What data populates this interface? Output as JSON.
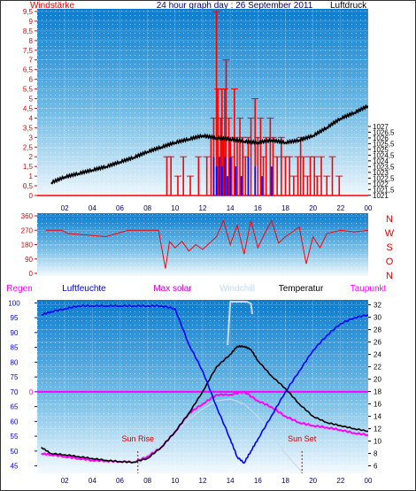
{
  "header": {
    "left_label": "Windstärke",
    "title": "24 hour graph day : 26 September 2011",
    "right_label": "Luftdruck"
  },
  "colors": {
    "wind": "#ff0000",
    "gust_blue": "#0000ff",
    "pressure": "#000000",
    "humidity": "#0000ff",
    "solar": "#c000c0",
    "windchill": "#c8d8f0",
    "temperature": "#000000",
    "dewpoint": "#ff00ff",
    "rain": "#ff00ff",
    "text_red": "#e00000",
    "text_blue": "#0000cc",
    "text_dark": "#000066"
  },
  "chart_data": [
    {
      "id": "wind_pressure",
      "type": "bar",
      "x_ticks": [
        "02",
        "04",
        "06",
        "08",
        "10",
        "12",
        "14",
        "16",
        "18",
        "20",
        "22",
        "00"
      ],
      "left_axis": {
        "label": "Windstärke",
        "range": [
          0,
          9.5
        ],
        "ticks": [
          "0",
          "0,5",
          "1",
          "1,5",
          "2",
          "2,5",
          "3",
          "3,5",
          "4",
          "4,5",
          "5",
          "5,5",
          "6",
          "6,5",
          "7",
          "7,5",
          "8",
          "8,5",
          "9",
          "9,5"
        ]
      },
      "right_axis": {
        "label": "Luftdruck",
        "range": [
          1020.75,
          1037.25
        ],
        "ticks": [
          "1021",
          "1021,5",
          "1022",
          "1022,5",
          "1023",
          "1023,5",
          "1024",
          "1024,5",
          "1025",
          "1025,5",
          "1026",
          "1026,5",
          "1027"
        ]
      },
      "series": [
        {
          "name": "Windstärke",
          "kind": "bars",
          "x": [
            9.4,
            9.7,
            10.2,
            10.6,
            11.1,
            11.7,
            12.3,
            12.6,
            12.8,
            13.0,
            13.1,
            13.3,
            13.4,
            13.5,
            13.6,
            13.7,
            13.9,
            14.0,
            14.1,
            14.3,
            14.5,
            14.7,
            14.9,
            15.1,
            15.3,
            15.5,
            15.8,
            16.0,
            16.2,
            16.4,
            16.6,
            16.9,
            17.1,
            17.4,
            17.7,
            18.0,
            18.3,
            18.6,
            18.9,
            19.1,
            19.3,
            19.6,
            19.8,
            20.1,
            20.3,
            20.6,
            21.0,
            21.4,
            21.9
          ],
          "values": [
            2,
            2,
            1,
            2,
            1,
            2,
            2,
            3,
            4,
            9.5,
            5.5,
            4,
            5.5,
            3,
            5.5,
            7,
            4,
            3,
            2,
            5.5,
            3,
            4,
            3,
            2,
            3,
            4,
            5,
            3,
            4,
            2,
            3,
            4,
            3,
            2,
            3,
            2,
            2,
            1,
            2,
            3,
            2,
            1,
            2,
            2,
            1,
            2,
            1,
            2,
            1
          ]
        },
        {
          "name": "Böen",
          "kind": "bars",
          "x": [
            12.8,
            13.0,
            13.2,
            13.4,
            13.6,
            13.8,
            14.0,
            14.4,
            14.8,
            15.3,
            15.8,
            16.3,
            17.0
          ],
          "values": [
            2,
            1.5,
            2,
            1.5,
            2,
            1,
            2,
            1.5,
            1,
            2,
            1.5,
            1,
            1.5
          ]
        },
        {
          "name": "Luftdruck",
          "kind": "line",
          "axis": "right",
          "x": [
            1,
            2,
            3,
            4,
            5,
            6,
            7,
            8,
            9,
            10,
            11,
            12,
            13,
            14,
            15,
            16,
            17,
            18,
            19,
            20,
            21,
            22,
            23,
            24
          ],
          "values": [
            1022.1,
            1022.6,
            1022.9,
            1023.2,
            1023.5,
            1023.9,
            1024.3,
            1024.8,
            1025.2,
            1025.6,
            1025.9,
            1026.2,
            1026.0,
            1025.9,
            1025.7,
            1025.6,
            1025.8,
            1025.6,
            1025.8,
            1026.2,
            1026.9,
            1027.7,
            1028.2,
            1028.8
          ]
        }
      ]
    },
    {
      "id": "wind_direction",
      "type": "line",
      "x_ticks": [],
      "left_axis": {
        "range": [
          0,
          360
        ],
        "ticks": [
          "0",
          "90",
          "180",
          "270",
          "360"
        ]
      },
      "right_labels": [
        "N",
        "W",
        "S",
        "O",
        "N"
      ],
      "series": [
        {
          "name": "Windrichtung",
          "x": [
            0.6,
            1.8,
            2.2,
            3.6,
            5.0,
            6.6,
            8.8,
            9.3,
            9.6,
            10.0,
            10.5,
            11.0,
            11.5,
            12.0,
            12.5,
            13.0,
            13.5,
            14.0,
            14.5,
            15.0,
            15.5,
            16.0,
            16.5,
            17.0,
            17.5,
            18.0,
            18.5,
            19.0,
            19.5,
            20.0,
            20.5,
            21.0,
            21.5,
            22.0,
            23.0,
            24.0
          ],
          "values": [
            270,
            270,
            250,
            240,
            230,
            270,
            270,
            30,
            200,
            160,
            200,
            140,
            180,
            150,
            190,
            230,
            330,
            180,
            300,
            120,
            330,
            160,
            250,
            330,
            190,
            230,
            260,
            290,
            60,
            230,
            160,
            250,
            260,
            270,
            260,
            270
          ]
        }
      ]
    },
    {
      "id": "temp_humidity",
      "type": "line",
      "x_ticks": [
        "02",
        "04",
        "06",
        "08",
        "10",
        "12",
        "14",
        "16",
        "18",
        "20",
        "22",
        "00"
      ],
      "legend": [
        "Regen",
        "Luftfeuchte",
        "Max solar",
        "Windchill",
        "Temperatur",
        "Taupunkt"
      ],
      "left_axis": {
        "label": "Luftfeuchte",
        "range": [
          42.5,
          101
        ],
        "ticks": [
          "45",
          "50",
          "55",
          "60",
          "65",
          "70",
          "75",
          "80",
          "85",
          "90",
          "95",
          "100"
        ]
      },
      "right_axis": {
        "label": "Temperatur",
        "range": [
          4.8,
          32.8
        ],
        "ticks": [
          "6",
          "8",
          "10",
          "12",
          "14",
          "16",
          "18",
          "20",
          "22",
          "24",
          "26",
          "28",
          "30",
          "32"
        ]
      },
      "rain_axis_label": "0",
      "annotations": [
        {
          "text": "Sun Rise",
          "x": 7.3
        },
        {
          "text": "Sun Set",
          "x": 19.2
        }
      ],
      "series": [
        {
          "name": "Luftfeuchte",
          "axis": "left",
          "x": [
            0.3,
            1,
            2,
            3,
            4,
            5,
            6,
            7,
            8,
            9,
            10,
            11,
            12,
            13,
            14,
            14.5,
            15,
            15.5,
            16,
            17,
            18,
            19,
            20,
            21,
            22,
            23,
            24
          ],
          "values": [
            96,
            97,
            98,
            99,
            99,
            99,
            99,
            99,
            99,
            99,
            98,
            86,
            77,
            65,
            54,
            48,
            46,
            50,
            54,
            62,
            70,
            77,
            84,
            89,
            93,
            95,
            96
          ]
        },
        {
          "name": "Temperatur",
          "axis": "right",
          "x": [
            0.3,
            1,
            2,
            3,
            4,
            5,
            6,
            7,
            8,
            9,
            10,
            11,
            12,
            13,
            14,
            14.5,
            15,
            15.5,
            16,
            17,
            18,
            19,
            20,
            21,
            22,
            23,
            24
          ],
          "values": [
            9.0,
            8.0,
            7.8,
            7.5,
            7.2,
            6.9,
            6.7,
            6.6,
            7.2,
            9.0,
            11.5,
            14.5,
            18.0,
            22.0,
            24.0,
            25.3,
            25.3,
            24.8,
            23.0,
            20.5,
            18.5,
            16.0,
            14.0,
            13.0,
            12.5,
            12.0,
            11.6
          ]
        },
        {
          "name": "Taupunkt",
          "axis": "right",
          "x": [
            0.3,
            1,
            2,
            3,
            4,
            5,
            6,
            7,
            8,
            9,
            10,
            11,
            12,
            13,
            14,
            15,
            16,
            17,
            18,
            19,
            20,
            21,
            22,
            23,
            24
          ],
          "values": [
            8.0,
            7.8,
            7.5,
            7.2,
            6.9,
            6.8,
            6.7,
            6.6,
            7.5,
            9.0,
            11.5,
            14.5,
            16.0,
            17.5,
            17.5,
            18.0,
            16.5,
            15.5,
            14.0,
            13.0,
            12.5,
            12.2,
            11.8,
            11.3,
            11.0
          ]
        },
        {
          "name": "Max solar",
          "axis": "right",
          "x": [
            7.3,
            8,
            9,
            10,
            11,
            12,
            13,
            14,
            15,
            16,
            17,
            18,
            19.2
          ],
          "values": [
            6,
            7.8,
            9.5,
            11.5,
            13.5,
            15.2,
            16.5,
            16.8,
            16.0,
            14.0,
            11.0,
            8.0,
            5.0
          ]
        },
        {
          "name": "Windchill",
          "axis": "right",
          "x": [
            13.8,
            14.0,
            14.1,
            15.2,
            15.5,
            15.6
          ],
          "values": [
            25.5,
            32.5,
            32.5,
            32.5,
            32.2,
            30.5
          ]
        }
      ]
    }
  ]
}
